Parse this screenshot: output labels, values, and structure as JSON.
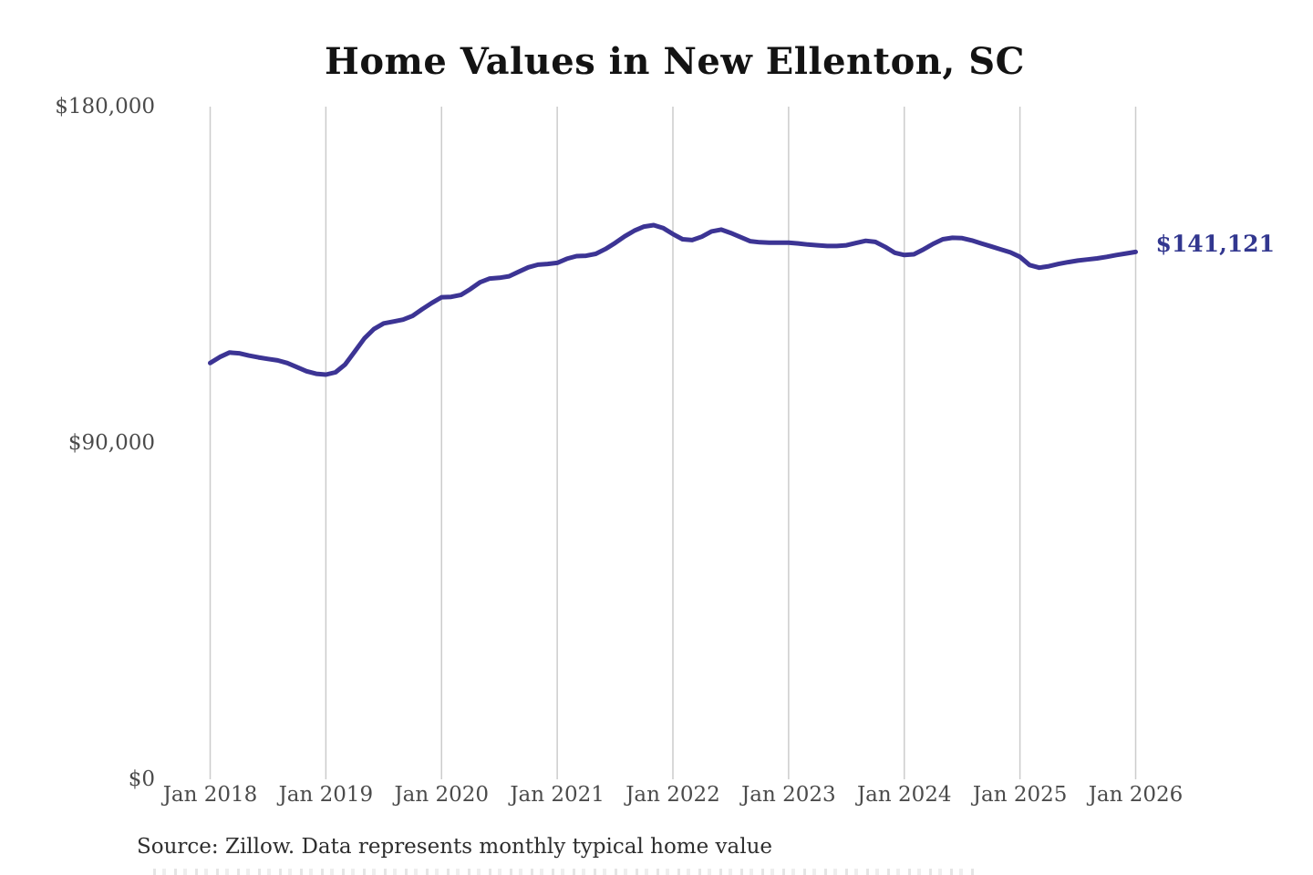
{
  "title": "Home Values in New Ellenton, SC",
  "source_note": "Source: Zillow. Data represents monthly typical home value",
  "colors": {
    "line": "#3c3494",
    "end_label": "#32378f",
    "grid": "#cccccc",
    "title_text": "#131313",
    "axis_text": "#4b4b4b"
  },
  "chart_data": {
    "type": "line",
    "title": "Home Values in New Ellenton, SC",
    "xlabel": "",
    "ylabel": "",
    "x_unit": "month",
    "x_range": [
      "Jan 2018",
      "Jan 2026"
    ],
    "ylim": [
      0,
      180000
    ],
    "grid": "vertical-only",
    "legend": "none",
    "x_tick_labels": [
      "Jan 2018",
      "Jan 2019",
      "Jan 2020",
      "Jan 2021",
      "Jan 2022",
      "Jan 2023",
      "Jan 2024",
      "Jan 2025",
      "Jan 2026"
    ],
    "y_ticks": [
      {
        "label": "$180,000",
        "value": 180000
      },
      {
        "label": "$90,000",
        "value": 90000
      },
      {
        "label": "$0",
        "value": 0
      }
    ],
    "end_label": "$141,121",
    "end_value": 141121,
    "series": [
      {
        "name": "Monthly typical home value",
        "values": [
          111400,
          113000,
          114200,
          114000,
          113400,
          112900,
          112500,
          112100,
          111400,
          110300,
          109200,
          108500,
          108300,
          108900,
          111000,
          114500,
          118000,
          120500,
          122000,
          122500,
          123000,
          124000,
          125800,
          127500,
          129000,
          129100,
          129600,
          131200,
          133000,
          134000,
          134200,
          134600,
          135800,
          137000,
          137700,
          137900,
          138200,
          139300,
          140000,
          140100,
          140600,
          141900,
          143500,
          145300,
          146800,
          147900,
          148300,
          147500,
          145900,
          144500,
          144300,
          145200,
          146600,
          147100,
          146200,
          145100,
          144000,
          143700,
          143600,
          143600,
          143600,
          143400,
          143100,
          142900,
          142700,
          142700,
          142900,
          143500,
          144100,
          143800,
          142500,
          140900,
          140300,
          140500,
          141800,
          143300,
          144500,
          144900,
          144800,
          144200,
          143400,
          142600,
          141800,
          141000,
          139800,
          137600,
          136900,
          137300,
          137900,
          138400,
          138800,
          139100,
          139400,
          139800,
          140300,
          140700,
          141121
        ]
      }
    ]
  }
}
